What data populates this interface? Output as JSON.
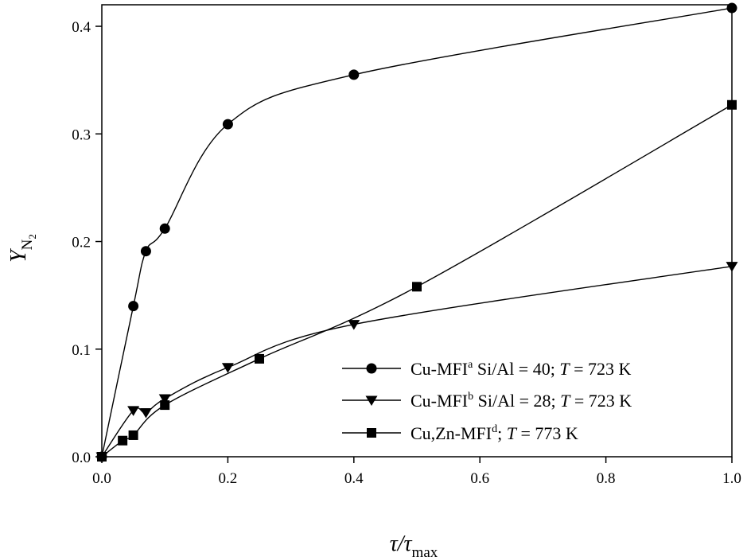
{
  "chart_data": {
    "type": "line",
    "title": "",
    "x_axis": {
      "label_main": "τ/τ",
      "label_sub": "max",
      "range": [
        0.0,
        1.0
      ],
      "ticks": [
        "0.0",
        "0.2",
        "0.4",
        "0.6",
        "0.8",
        "1.0"
      ],
      "tick_values": [
        0.0,
        0.2,
        0.4,
        0.6,
        0.8,
        1.0
      ]
    },
    "y_axis": {
      "label_main": "Y",
      "label_sub": "N",
      "label_subsub": "2",
      "range": [
        0.0,
        0.42
      ],
      "ticks": [
        "0.0",
        "0.1",
        "0.2",
        "0.3",
        "0.4"
      ],
      "tick_values": [
        0.0,
        0.1,
        0.2,
        0.3,
        0.4
      ]
    },
    "grid": false,
    "legend_position": "bottom-right",
    "series": [
      {
        "name_prefix": "Cu-MFI",
        "name_sup": "a",
        "name_rest": " Si/Al = 40; ",
        "name_T": "T",
        "name_tail": " = 723 K",
        "marker": "circle",
        "x": [
          0.0,
          0.05,
          0.07,
          0.1,
          0.2,
          0.4,
          1.0
        ],
        "y": [
          0.0,
          0.14,
          0.191,
          0.212,
          0.309,
          0.355,
          0.417
        ]
      },
      {
        "name_prefix": "Cu-MFI",
        "name_sup": "b",
        "name_rest": " Si/Al = 28; ",
        "name_T": "T",
        "name_tail": " = 723 K",
        "marker": "triangle-down",
        "x": [
          0.0,
          0.05,
          0.07,
          0.1,
          0.2,
          0.4,
          1.0
        ],
        "y": [
          0.0,
          0.043,
          0.041,
          0.054,
          0.083,
          0.123,
          0.177
        ]
      },
      {
        "name_prefix": "Cu,Zn-MFI",
        "name_sup": "d",
        "name_rest": "; ",
        "name_T": "T",
        "name_tail": " = 773 K",
        "marker": "square",
        "x": [
          0.0,
          0.033,
          0.05,
          0.1,
          0.25,
          0.5,
          1.0
        ],
        "y": [
          0.0,
          0.015,
          0.02,
          0.048,
          0.091,
          0.158,
          0.327
        ]
      }
    ]
  }
}
